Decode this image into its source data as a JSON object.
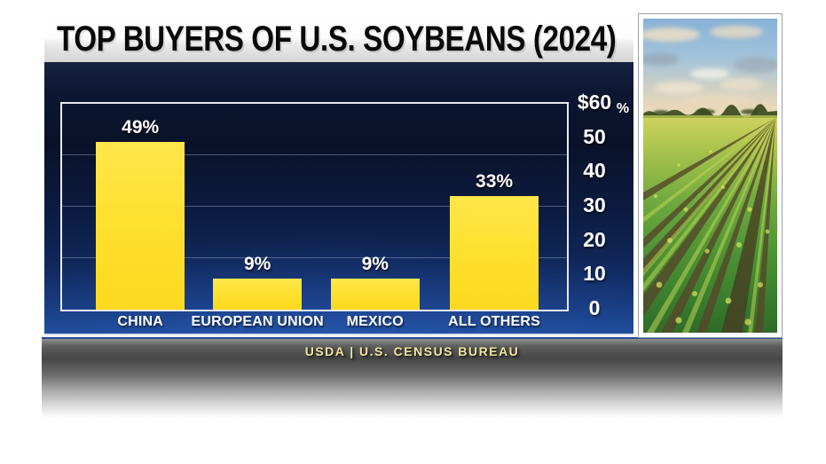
{
  "header": {
    "title": "TOP BUYERS OF U.S. SOYBEANS (2024)"
  },
  "source_bar": {
    "text": "USDA | U.S. CENSUS BUREAU",
    "text_color": "#f2e6a0"
  },
  "photo": {
    "description": "Rows of green soybean plants converging toward the horizon under a blue sky with clouds"
  },
  "chart_data": {
    "type": "bar",
    "title": "TOP BUYERS OF U.S. SOYBEANS (2024)",
    "categories": [
      "CHINA",
      "EUROPEAN UNION",
      "MEXICO",
      "ALL OTHERS"
    ],
    "values": [
      49,
      9,
      9,
      33
    ],
    "value_labels": [
      "49%",
      "9%",
      "9%",
      "33%"
    ],
    "ylim": [
      0,
      60
    ],
    "y_ticks": [
      {
        "value": 60,
        "label": "$60"
      },
      {
        "value": 50,
        "label": "50"
      },
      {
        "value": 40,
        "label": "40"
      },
      {
        "value": 30,
        "label": "30"
      },
      {
        "value": 20,
        "label": "20"
      },
      {
        "value": 10,
        "label": "10"
      },
      {
        "value": 0,
        "label": "0"
      }
    ],
    "y_axis_unit_label": "%",
    "axis_labels_side": "right",
    "gridlines_at": [
      15,
      30,
      45
    ],
    "grid": true,
    "legend": false,
    "bar_color": "#ffe133",
    "label_color": "#ffffff",
    "panel_color_top": "#0a1229",
    "panel_color_bottom": "#1f4d9a",
    "source": "USDA | U.S. CENSUS BUREAU"
  }
}
